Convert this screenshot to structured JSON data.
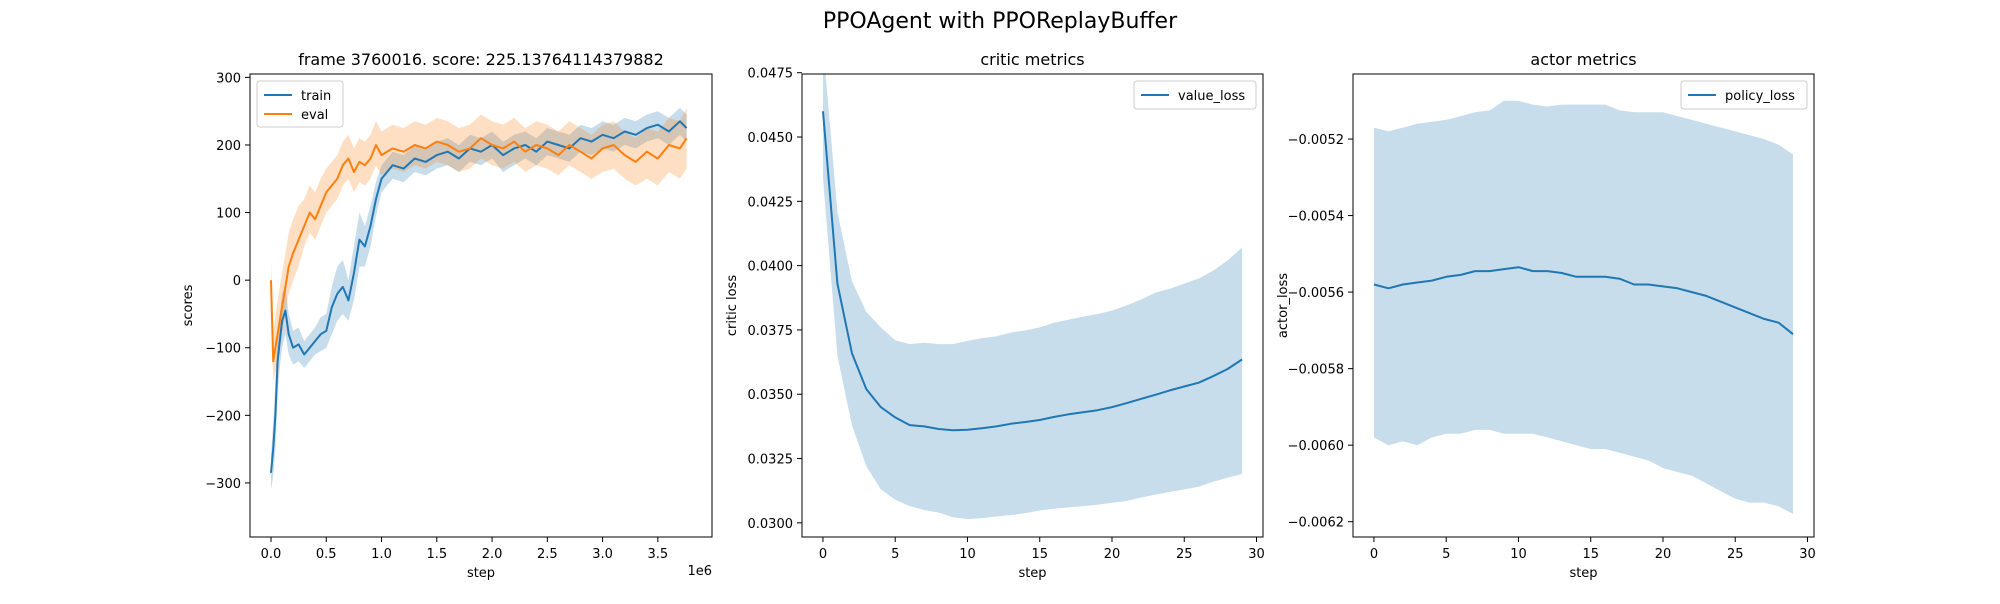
{
  "figure": {
    "suptitle": "PPOAgent with PPOReplayBuffer"
  },
  "colors": {
    "blue": "#1f77b4",
    "orange": "#ff7f0e",
    "blue_band": "#1f77b4",
    "orange_band": "#ff7f0e"
  },
  "chart_data": [
    {
      "type": "line",
      "title": "frame 3760016. score: 225.13764114379882",
      "xlabel": "step",
      "ylabel": "scores",
      "x_offset_text": "1e6",
      "xlim": [
        -0.19,
        3.99
      ],
      "ylim": [
        -380,
        305
      ],
      "xticks": [
        0.0,
        0.5,
        1.0,
        1.5,
        2.0,
        2.5,
        3.0,
        3.5
      ],
      "xtick_labels": [
        "0.0",
        "0.5",
        "1.0",
        "1.5",
        "2.0",
        "2.5",
        "3.0",
        "3.5"
      ],
      "yticks": [
        -300,
        -200,
        -100,
        0,
        100,
        200,
        300
      ],
      "ytick_labels": [
        "−300",
        "−200",
        "−100",
        "0",
        "100",
        "200",
        "300"
      ],
      "legend_position": "upper-left",
      "series": [
        {
          "name": "train",
          "color": "#1f77b4",
          "x": [
            0.0,
            0.02,
            0.04,
            0.06,
            0.08,
            0.1,
            0.13,
            0.16,
            0.2,
            0.25,
            0.3,
            0.35,
            0.4,
            0.45,
            0.5,
            0.55,
            0.6,
            0.65,
            0.7,
            0.75,
            0.8,
            0.85,
            0.9,
            0.95,
            1.0,
            1.05,
            1.1,
            1.2,
            1.3,
            1.4,
            1.5,
            1.6,
            1.7,
            1.8,
            1.9,
            2.0,
            2.1,
            2.2,
            2.3,
            2.4,
            2.5,
            2.6,
            2.7,
            2.8,
            2.9,
            3.0,
            3.1,
            3.2,
            3.3,
            3.4,
            3.5,
            3.6,
            3.7,
            3.76
          ],
          "y": [
            -285,
            -250,
            -200,
            -120,
            -90,
            -60,
            -45,
            -80,
            -100,
            -95,
            -110,
            -100,
            -90,
            -80,
            -75,
            -40,
            -20,
            -10,
            -30,
            10,
            60,
            50,
            80,
            120,
            150,
            160,
            170,
            165,
            180,
            175,
            185,
            190,
            180,
            195,
            190,
            200,
            185,
            195,
            200,
            190,
            205,
            200,
            195,
            210,
            205,
            215,
            210,
            220,
            215,
            225,
            230,
            220,
            235,
            225
          ],
          "band_low": [
            -310,
            -290,
            -250,
            -170,
            -130,
            -100,
            -80,
            -110,
            -125,
            -120,
            -130,
            -120,
            -110,
            -105,
            -100,
            -80,
            -60,
            -50,
            -60,
            -30,
            20,
            20,
            50,
            95,
            130,
            140,
            150,
            145,
            160,
            155,
            165,
            170,
            160,
            175,
            170,
            180,
            160,
            170,
            180,
            170,
            185,
            180,
            175,
            190,
            185,
            195,
            190,
            200,
            195,
            205,
            210,
            200,
            215,
            205
          ],
          "band_high": [
            -260,
            -210,
            -150,
            -70,
            -50,
            -20,
            -10,
            -50,
            -75,
            -70,
            -90,
            -80,
            -70,
            -55,
            -50,
            -10,
            20,
            30,
            0,
            50,
            100,
            80,
            110,
            145,
            170,
            180,
            190,
            185,
            200,
            195,
            205,
            210,
            200,
            215,
            210,
            220,
            205,
            215,
            220,
            210,
            225,
            220,
            215,
            230,
            225,
            235,
            230,
            240,
            235,
            245,
            250,
            240,
            255,
            245
          ]
        },
        {
          "name": "eval",
          "color": "#ff7f0e",
          "x": [
            0.0,
            0.02,
            0.05,
            0.08,
            0.12,
            0.16,
            0.2,
            0.25,
            0.3,
            0.35,
            0.4,
            0.45,
            0.5,
            0.55,
            0.6,
            0.65,
            0.7,
            0.75,
            0.8,
            0.85,
            0.9,
            0.95,
            1.0,
            1.1,
            1.2,
            1.3,
            1.4,
            1.5,
            1.6,
            1.7,
            1.8,
            1.9,
            2.0,
            2.1,
            2.2,
            2.3,
            2.4,
            2.5,
            2.6,
            2.7,
            2.8,
            2.9,
            3.0,
            3.1,
            3.2,
            3.3,
            3.4,
            3.5,
            3.6,
            3.7,
            3.76
          ],
          "y": [
            0,
            -120,
            -90,
            -60,
            -20,
            20,
            40,
            60,
            80,
            100,
            90,
            110,
            130,
            140,
            150,
            170,
            180,
            160,
            175,
            170,
            180,
            200,
            185,
            195,
            190,
            200,
            195,
            205,
            200,
            190,
            195,
            210,
            200,
            195,
            205,
            190,
            200,
            195,
            185,
            200,
            190,
            180,
            195,
            200,
            185,
            175,
            190,
            180,
            200,
            195,
            210
          ],
          "band_low": [
            -40,
            -150,
            -130,
            -100,
            -60,
            -20,
            0,
            20,
            50,
            70,
            60,
            80,
            100,
            110,
            120,
            140,
            150,
            130,
            145,
            140,
            150,
            170,
            155,
            165,
            160,
            170,
            165,
            175,
            170,
            160,
            165,
            180,
            170,
            165,
            175,
            160,
            170,
            165,
            155,
            170,
            160,
            150,
            160,
            165,
            150,
            140,
            150,
            140,
            160,
            150,
            165
          ],
          "band_high": [
            30,
            -80,
            -40,
            -10,
            30,
            70,
            90,
            110,
            120,
            140,
            130,
            150,
            165,
            175,
            185,
            205,
            215,
            195,
            210,
            205,
            215,
            235,
            220,
            230,
            225,
            235,
            230,
            240,
            235,
            225,
            230,
            245,
            235,
            230,
            240,
            225,
            235,
            230,
            220,
            235,
            225,
            215,
            230,
            235,
            220,
            210,
            225,
            220,
            240,
            235,
            255
          ]
        }
      ]
    },
    {
      "type": "line",
      "title": "critic metrics",
      "xlabel": "step",
      "ylabel": "critic loss",
      "xlim": [
        -1.45,
        30.45
      ],
      "ylim": [
        0.02945,
        0.04745
      ],
      "xticks": [
        0,
        5,
        10,
        15,
        20,
        25,
        30
      ],
      "xtick_labels": [
        "0",
        "5",
        "10",
        "15",
        "20",
        "25",
        "30"
      ],
      "yticks": [
        0.03,
        0.0325,
        0.035,
        0.0375,
        0.04,
        0.0425,
        0.045,
        0.0475
      ],
      "ytick_labels": [
        "0.0300",
        "0.0325",
        "0.0350",
        "0.0375",
        "0.0400",
        "0.0425",
        "0.0450",
        "0.0475"
      ],
      "legend_position": "upper-right",
      "series": [
        {
          "name": "value_loss",
          "color": "#1f77b4",
          "x": [
            0,
            1,
            2,
            3,
            4,
            5,
            6,
            7,
            8,
            9,
            10,
            11,
            12,
            13,
            14,
            15,
            16,
            17,
            18,
            19,
            20,
            21,
            22,
            23,
            24,
            25,
            26,
            27,
            28,
            29
          ],
          "y": [
            0.046,
            0.0393,
            0.0366,
            0.0352,
            0.0345,
            0.0341,
            0.0338,
            0.03375,
            0.03365,
            0.0336,
            0.03362,
            0.03368,
            0.03375,
            0.03385,
            0.03392,
            0.034,
            0.03412,
            0.03422,
            0.0343,
            0.03438,
            0.0345,
            0.03465,
            0.03482,
            0.03498,
            0.03515,
            0.0353,
            0.03545,
            0.0357,
            0.03598,
            0.03635
          ],
          "band_low": [
            0.0434,
            0.0365,
            0.0338,
            0.0322,
            0.0313,
            0.0309,
            0.03065,
            0.0305,
            0.0304,
            0.03022,
            0.03015,
            0.03018,
            0.03025,
            0.0303,
            0.03038,
            0.03048,
            0.03055,
            0.0306,
            0.03065,
            0.0307,
            0.03078,
            0.03085,
            0.03098,
            0.0311,
            0.0312,
            0.0313,
            0.0314,
            0.0316,
            0.03175,
            0.0319
          ],
          "band_high": [
            0.0486,
            0.0421,
            0.0394,
            0.0382,
            0.0376,
            0.0371,
            0.03695,
            0.037,
            0.03695,
            0.03695,
            0.03708,
            0.03718,
            0.03725,
            0.0374,
            0.03748,
            0.0376,
            0.03778,
            0.0379,
            0.03802,
            0.03812,
            0.03825,
            0.03845,
            0.03868,
            0.03895,
            0.0391,
            0.0393,
            0.0395,
            0.0398,
            0.0402,
            0.0407
          ]
        }
      ]
    },
    {
      "type": "line",
      "title": "actor metrics",
      "xlabel": "step",
      "ylabel": "actor_loss",
      "xlim": [
        -1.45,
        30.45
      ],
      "ylim": [
        -0.00624,
        -0.00503
      ],
      "xticks": [
        0,
        5,
        10,
        15,
        20,
        25,
        30
      ],
      "xtick_labels": [
        "0",
        "5",
        "10",
        "15",
        "20",
        "25",
        "30"
      ],
      "yticks": [
        -0.0062,
        -0.006,
        -0.0058,
        -0.0056,
        -0.0054,
        -0.0052
      ],
      "ytick_labels": [
        "−0.0062",
        "−0.0060",
        "−0.0058",
        "−0.0056",
        "−0.0054",
        "−0.0052"
      ],
      "legend_position": "upper-right",
      "series": [
        {
          "name": "policy_loss",
          "color": "#1f77b4",
          "x": [
            0,
            1,
            2,
            3,
            4,
            5,
            6,
            7,
            8,
            9,
            10,
            11,
            12,
            13,
            14,
            15,
            16,
            17,
            18,
            19,
            20,
            21,
            22,
            23,
            24,
            25,
            26,
            27,
            28,
            29
          ],
          "y": [
            -0.00558,
            -0.00559,
            -0.00558,
            -0.005575,
            -0.00557,
            -0.00556,
            -0.005555,
            -0.005545,
            -0.005545,
            -0.00554,
            -0.005535,
            -0.005545,
            -0.005545,
            -0.00555,
            -0.00556,
            -0.00556,
            -0.00556,
            -0.005565,
            -0.00558,
            -0.00558,
            -0.005585,
            -0.00559,
            -0.0056,
            -0.00561,
            -0.005625,
            -0.00564,
            -0.005655,
            -0.00567,
            -0.00568,
            -0.00571
          ],
          "band_low": [
            -0.00598,
            -0.006,
            -0.00599,
            -0.006,
            -0.00598,
            -0.00597,
            -0.00597,
            -0.00596,
            -0.00596,
            -0.00597,
            -0.00597,
            -0.00597,
            -0.00598,
            -0.00599,
            -0.006,
            -0.00601,
            -0.00601,
            -0.00602,
            -0.00603,
            -0.00604,
            -0.00606,
            -0.00607,
            -0.00608,
            -0.0061,
            -0.00612,
            -0.00614,
            -0.00615,
            -0.00615,
            -0.00616,
            -0.00618
          ],
          "band_high": [
            -0.00517,
            -0.00518,
            -0.00517,
            -0.00516,
            -0.005155,
            -0.00515,
            -0.00514,
            -0.00513,
            -0.005125,
            -0.0051,
            -0.0051,
            -0.00511,
            -0.005115,
            -0.00511,
            -0.00511,
            -0.00511,
            -0.00511,
            -0.005125,
            -0.00513,
            -0.00513,
            -0.00513,
            -0.00514,
            -0.00515,
            -0.00516,
            -0.00517,
            -0.00518,
            -0.00519,
            -0.0052,
            -0.005215,
            -0.00524
          ]
        }
      ]
    }
  ]
}
